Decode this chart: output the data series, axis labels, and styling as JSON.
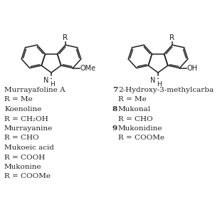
{
  "background_color": "#ffffff",
  "bond_color": "#222222",
  "line_width": 1.1,
  "fig_width": 3.09,
  "fig_height": 3.09,
  "dpi": 100,
  "left_labels": [
    "Murrayafoline A",
    "R = Me",
    "Koenoline",
    "R = CH₂OH",
    "Murrayanine",
    "R = CHO",
    "Mukoeic acid",
    "R = COOH",
    "Mukonine",
    "R = COOMe"
  ],
  "right_labels": [
    [
      "7",
      "2-Hydroxy-3-methylcarba"
    ],
    [
      "",
      "R = Me"
    ],
    [
      "8",
      "Mukonal"
    ],
    [
      "",
      "R = CHO"
    ],
    [
      "9",
      "Mukonidine"
    ],
    [
      "",
      "R = COOMe"
    ]
  ],
  "text_color": "#222222",
  "label_fontsize": 7.5,
  "num_fontsize": 7.5
}
